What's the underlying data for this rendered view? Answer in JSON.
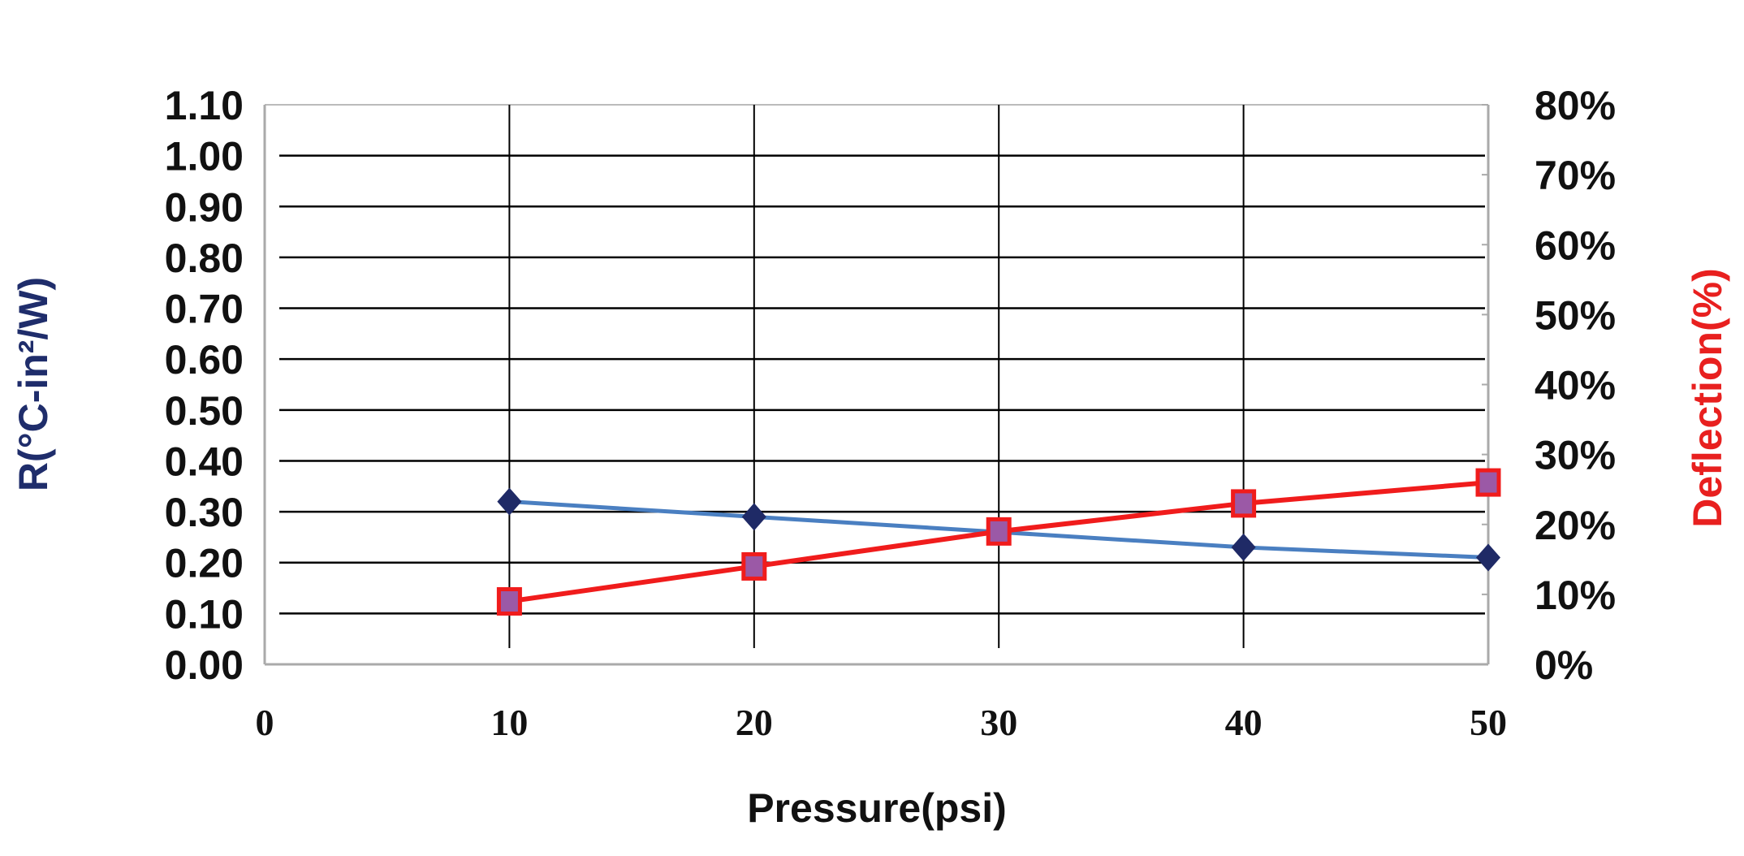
{
  "chart_data": {
    "type": "line",
    "title": "",
    "xlabel": "Pressure(psi)",
    "ylabel_left": "R(°C-in²/W)",
    "ylabel_right": "Deflection(%)",
    "xlim": [
      0,
      50
    ],
    "x_ticks": [
      "0",
      "10",
      "20",
      "30",
      "40",
      "50"
    ],
    "ylim_left": [
      0,
      1.1
    ],
    "y_left_ticks": [
      "0.00",
      "0.10",
      "0.20",
      "0.30",
      "0.40",
      "0.50",
      "0.60",
      "0.70",
      "0.80",
      "0.90",
      "1.00",
      "1.10"
    ],
    "ylim_right": [
      0,
      80
    ],
    "y_right_ticks": [
      "0%",
      "10%",
      "20%",
      "30%",
      "40%",
      "50%",
      "60%",
      "70%",
      "80%"
    ],
    "grid": true,
    "legend": "none",
    "x": [
      10,
      20,
      30,
      40,
      50
    ],
    "series": [
      {
        "axis": "left",
        "values": [
          0.32,
          0.29,
          0.26,
          0.23,
          0.21
        ],
        "line_color": "#4a7fc1",
        "marker": "diamond",
        "marker_color": "#1f2a66"
      },
      {
        "axis": "right",
        "values": [
          9,
          14,
          19,
          23,
          26
        ],
        "line_color": "#f01c1c",
        "marker": "square",
        "marker_color": "#9b59a6"
      }
    ],
    "colors": {
      "left_label": "#1f2d6b",
      "right_label": "#e8201f"
    }
  }
}
